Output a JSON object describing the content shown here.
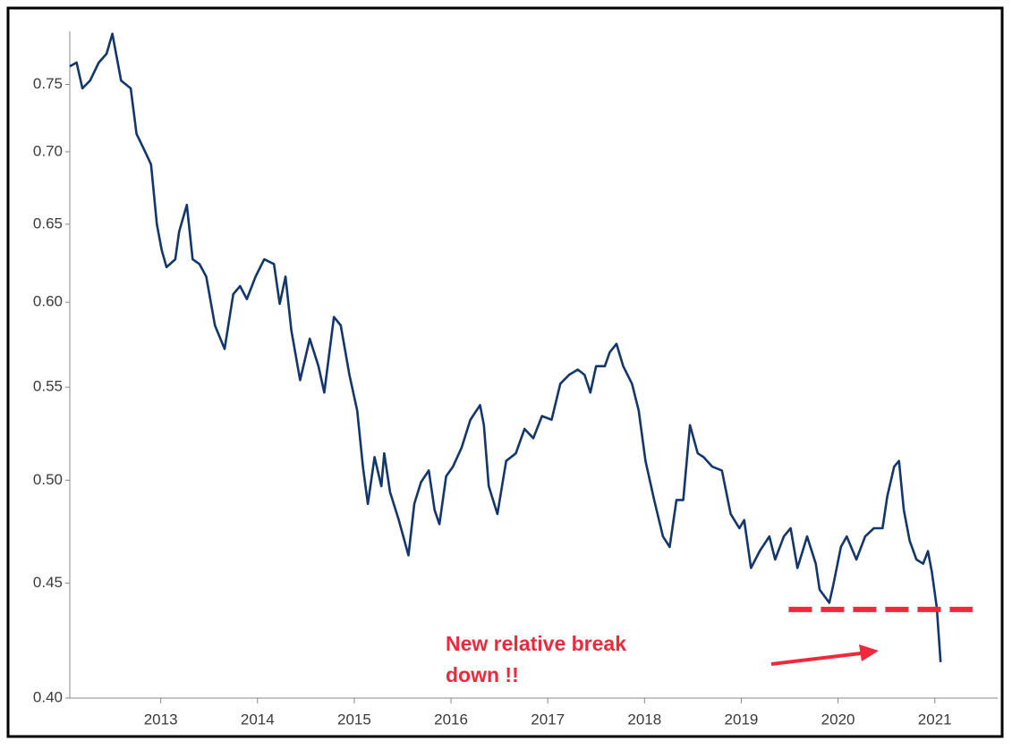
{
  "chart_data": {
    "type": "line",
    "log_y": true,
    "xlim": [
      2012.56,
      2022.15
    ],
    "ylim": [
      0.4,
      0.792
    ],
    "yticks": [
      {
        "value": 0.4,
        "label": "0.40"
      },
      0.45,
      {
        "value": 0.5,
        "label": "0.50"
      },
      0.55,
      {
        "value": 0.6,
        "label": "0.60"
      },
      0.65,
      {
        "value": 0.7,
        "label": "0.70"
      },
      0.75
    ],
    "xticks": [
      {
        "value": 2013.5,
        "label": "2013"
      },
      {
        "value": 2014.5,
        "label": "2014"
      },
      {
        "value": 2015.5,
        "label": "2015"
      },
      {
        "value": 2016.5,
        "label": "2016"
      },
      {
        "value": 2017.5,
        "label": "2017"
      },
      {
        "value": 2018.5,
        "label": "2018"
      },
      {
        "value": 2019.5,
        "label": "2019"
      },
      {
        "value": 2020.5,
        "label": "2020"
      },
      {
        "value": 2021.5,
        "label": "2021"
      }
    ],
    "series": [
      {
        "color": "#13366b",
        "x": [
          2012.56,
          2012.63,
          2012.69,
          2012.77,
          2012.86,
          2012.94,
          2013.0,
          2013.09,
          2013.19,
          2013.25,
          2013.34,
          2013.4,
          2013.46,
          2013.51,
          2013.56,
          2013.65,
          2013.69,
          2013.77,
          2013.83,
          2013.9,
          2013.97,
          2014.06,
          2014.16,
          2014.25,
          2014.32,
          2014.39,
          2014.48,
          2014.57,
          2014.67,
          2014.73,
          2014.79,
          2014.85,
          2014.94,
          2015.04,
          2015.13,
          2015.19,
          2015.29,
          2015.36,
          2015.45,
          2015.53,
          2015.59,
          2015.64,
          2015.71,
          2015.78,
          2015.81,
          2015.87,
          2015.96,
          2016.06,
          2016.12,
          2016.19,
          2016.27,
          2016.33,
          2016.38,
          2016.45,
          2016.52,
          2016.61,
          2016.7,
          2016.8,
          2016.84,
          2016.89,
          2016.98,
          2017.07,
          2017.17,
          2017.26,
          2017.35,
          2017.44,
          2017.54,
          2017.63,
          2017.72,
          2017.81,
          2017.88,
          2017.94,
          2018.0,
          2018.09,
          2018.14,
          2018.21,
          2018.28,
          2018.37,
          2018.44,
          2018.51,
          2018.6,
          2018.69,
          2018.76,
          2018.83,
          2018.9,
          2018.97,
          2019.05,
          2019.11,
          2019.2,
          2019.3,
          2019.39,
          2019.48,
          2019.53,
          2019.6,
          2019.69,
          2019.79,
          2019.85,
          2019.94,
          2020.01,
          2020.08,
          2020.18,
          2020.27,
          2020.31,
          2020.41,
          2020.45,
          2020.53,
          2020.59,
          2020.69,
          2020.78,
          2020.87,
          2020.96,
          2021.01,
          2021.08,
          2021.13,
          2021.18,
          2021.24,
          2021.31,
          2021.38,
          2021.43,
          2021.47,
          2021.52,
          2021.56
        ],
        "values": [
          0.764,
          0.767,
          0.747,
          0.753,
          0.767,
          0.774,
          0.79,
          0.753,
          0.747,
          0.713,
          0.7,
          0.691,
          0.65,
          0.633,
          0.622,
          0.627,
          0.645,
          0.663,
          0.627,
          0.624,
          0.616,
          0.586,
          0.572,
          0.605,
          0.61,
          0.602,
          0.616,
          0.627,
          0.624,
          0.599,
          0.616,
          0.583,
          0.554,
          0.578,
          0.562,
          0.547,
          0.591,
          0.586,
          0.557,
          0.537,
          0.507,
          0.488,
          0.512,
          0.497,
          0.514,
          0.494,
          0.48,
          0.463,
          0.488,
          0.499,
          0.505,
          0.485,
          0.478,
          0.502,
          0.507,
          0.517,
          0.532,
          0.54,
          0.529,
          0.497,
          0.483,
          0.51,
          0.514,
          0.527,
          0.522,
          0.534,
          0.532,
          0.552,
          0.557,
          0.56,
          0.557,
          0.547,
          0.562,
          0.562,
          0.57,
          0.575,
          0.562,
          0.552,
          0.537,
          0.51,
          0.49,
          0.472,
          0.467,
          0.49,
          0.49,
          0.529,
          0.514,
          0.512,
          0.507,
          0.505,
          0.483,
          0.476,
          0.48,
          0.457,
          0.465,
          0.472,
          0.461,
          0.472,
          0.476,
          0.457,
          0.472,
          0.459,
          0.447,
          0.441,
          0.449,
          0.467,
          0.472,
          0.461,
          0.472,
          0.476,
          0.476,
          0.492,
          0.507,
          0.51,
          0.485,
          0.47,
          0.461,
          0.459,
          0.465,
          0.455,
          0.439,
          0.415
        ]
      }
    ],
    "reference_line": {
      "value": 0.438,
      "x": [
        2019.99,
        2021.89
      ],
      "color": "#f0283c"
    },
    "annotation": [
      "New relative break",
      "down !!"
    ]
  }
}
